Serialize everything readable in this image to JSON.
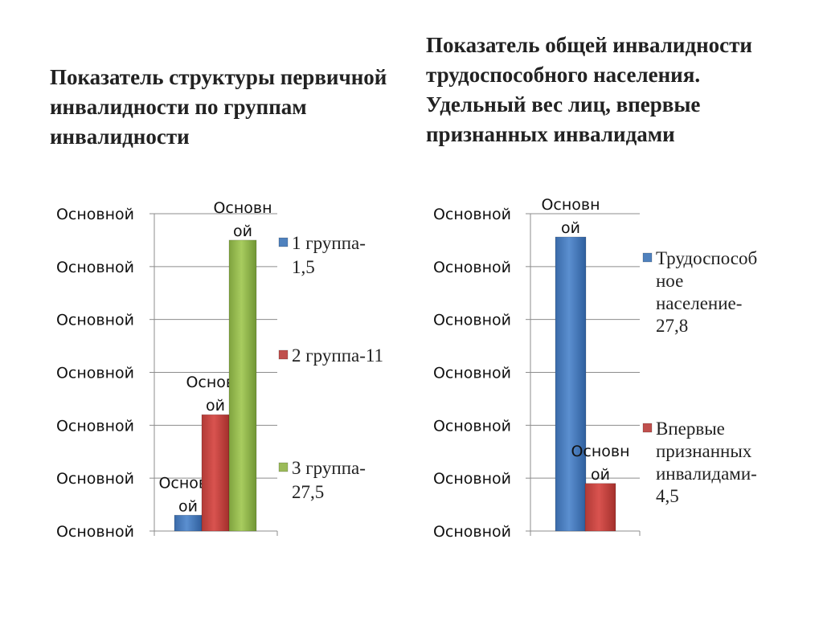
{
  "chart_data": [
    {
      "type": "bar",
      "title": "Показатель структуры первичной инвалидности по группам инвалидности",
      "ylim": [
        0,
        30
      ],
      "y_tick_labels": [
        "Основной",
        "Основной",
        "Основной",
        "Основной",
        "Основной",
        "Основной",
        "Основной"
      ],
      "grid": true,
      "legend_position": "right",
      "series": [
        {
          "name": "1 группа-1,5",
          "legend_lines": [
            "1 группа-",
            "1,5"
          ],
          "values": [
            1.5
          ],
          "color": "#4f81bd",
          "data_label_lines": [
            "Основн",
            "ой"
          ]
        },
        {
          "name": "2 группа-11",
          "legend_lines": [
            "2 группа-11"
          ],
          "values": [
            11
          ],
          "color": "#c0504d",
          "data_label_lines": [
            "Основн",
            "ой"
          ]
        },
        {
          "name": "3 группа-27,5",
          "legend_lines": [
            "3 группа-",
            "27,5"
          ],
          "values": [
            27.5
          ],
          "color": "#9bbb59",
          "data_label_lines": [
            "Основн",
            "ой"
          ]
        }
      ]
    },
    {
      "type": "bar",
      "title": "Показатель общей инвалидности трудоспособного населения. Удельный вес лиц, впервые признанных инвалидами",
      "ylim": [
        0,
        30
      ],
      "y_tick_labels": [
        "Основной",
        "Основной",
        "Основной",
        "Основной",
        "Основной",
        "Основной",
        "Основной"
      ],
      "grid": true,
      "legend_position": "right",
      "series": [
        {
          "name": "Трудоспособное население-27,8",
          "legend_lines": [
            "Трудоспособ",
            "ное",
            "население-",
            "27,8"
          ],
          "values": [
            27.8
          ],
          "color": "#4f81bd",
          "data_label_lines": [
            "Основн",
            "ой"
          ]
        },
        {
          "name": "Впервые признанных инвалидами-4,5",
          "legend_lines": [
            "Впервые",
            "признанных",
            "инвалидами-",
            "4,5"
          ],
          "values": [
            4.5
          ],
          "color": "#c0504d",
          "data_label_lines": [
            "Основн",
            "ой"
          ]
        }
      ]
    }
  ]
}
